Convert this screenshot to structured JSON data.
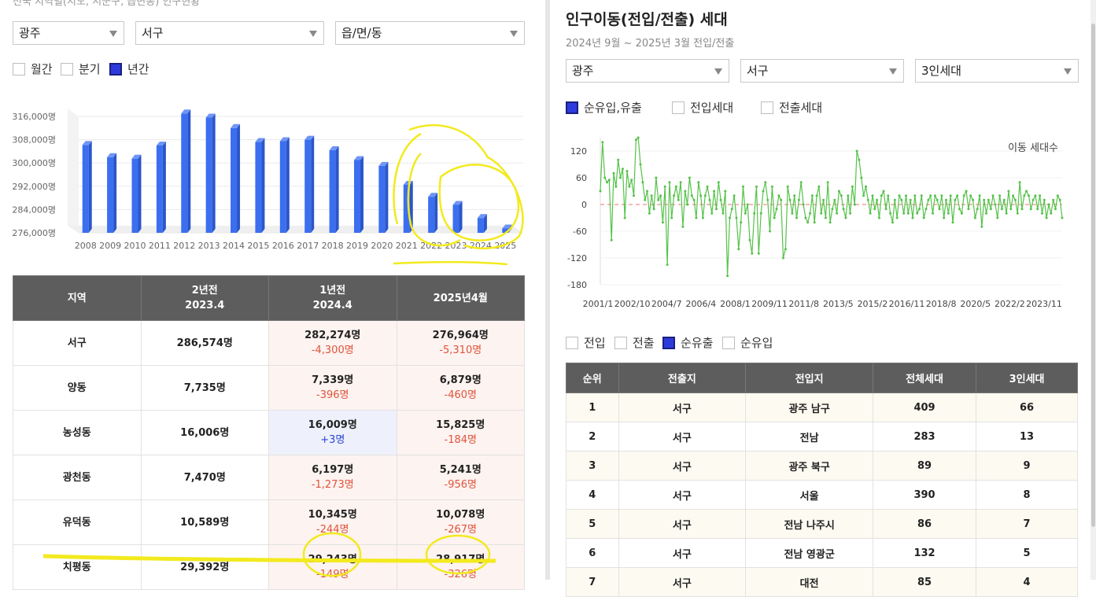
{
  "left": {
    "cut_title": "전국 지역별(시도, 시군구, 읍면동) 인구현황",
    "selects": {
      "sido": "광주",
      "sigungu": "서구",
      "emd": "읍/면/동"
    },
    "period_options": [
      {
        "label": "월간",
        "checked": false
      },
      {
        "label": "분기",
        "checked": false
      },
      {
        "label": "년간",
        "checked": true
      }
    ],
    "table": {
      "headers": [
        {
          "line1": "지역",
          "line2": ""
        },
        {
          "line1": "2년전",
          "line2": "2023.4"
        },
        {
          "line1": "1년전",
          "line2": "2024.4"
        },
        {
          "line1": "2025년4월",
          "line2": ""
        }
      ],
      "rows": [
        {
          "region": "서구",
          "y2": "286,574명",
          "y1": "282,274명",
          "y1_delta": "-4,300명",
          "y1_sign": "neg",
          "cur": "276,964명",
          "cur_delta": "-5,310명",
          "cur_sign": "neg"
        },
        {
          "region": "양동",
          "y2": "7,735명",
          "y1": "7,339명",
          "y1_delta": "-396명",
          "y1_sign": "neg",
          "cur": "6,879명",
          "cur_delta": "-460명",
          "cur_sign": "neg"
        },
        {
          "region": "농성동",
          "y2": "16,006명",
          "y1": "16,009명",
          "y1_delta": "+3명",
          "y1_sign": "pos",
          "cur": "15,825명",
          "cur_delta": "-184명",
          "cur_sign": "neg"
        },
        {
          "region": "광천동",
          "y2": "7,470명",
          "y1": "6,197명",
          "y1_delta": "-1,273명",
          "y1_sign": "neg",
          "cur": "5,241명",
          "cur_delta": "-956명",
          "cur_sign": "neg"
        },
        {
          "region": "유덕동",
          "y2": "10,589명",
          "y1": "10,345명",
          "y1_delta": "-244명",
          "y1_sign": "neg",
          "cur": "10,078명",
          "cur_delta": "-267명",
          "cur_sign": "neg"
        },
        {
          "region": "치평동",
          "y2": "29,392명",
          "y1": "29,243명",
          "y1_delta": "-149명",
          "y1_sign": "neg",
          "cur": "28,917명",
          "cur_delta": "-326명",
          "cur_sign": "neg"
        }
      ]
    }
  },
  "right": {
    "title": "인구이동(전입/전출) 세대",
    "subtitle": "2024년 9월 ~ 2025년 3월 전입/전출",
    "selects": {
      "sido": "광주",
      "sigungu": "서구",
      "household": "3인세대"
    },
    "chart_options": [
      {
        "label": "순유입,유출",
        "checked": true
      },
      {
        "label": "전입세대",
        "checked": false
      },
      {
        "label": "전출세대",
        "checked": false
      }
    ],
    "table_options": [
      {
        "label": "전입",
        "checked": false
      },
      {
        "label": "전출",
        "checked": false
      },
      {
        "label": "순유출",
        "checked": true
      },
      {
        "label": "순유입",
        "checked": false
      }
    ],
    "table": {
      "headers": [
        "순위",
        "전출지",
        "전입지",
        "전체세대",
        "3인세대"
      ],
      "rows": [
        [
          "1",
          "서구",
          "광주 남구",
          "409",
          "66"
        ],
        [
          "2",
          "서구",
          "전남",
          "283",
          "13"
        ],
        [
          "3",
          "서구",
          "광주 북구",
          "89",
          "9"
        ],
        [
          "4",
          "서구",
          "서울",
          "390",
          "8"
        ],
        [
          "5",
          "서구",
          "전남 나주시",
          "86",
          "7"
        ],
        [
          "6",
          "서구",
          "전남 영광군",
          "132",
          "5"
        ],
        [
          "7",
          "서구",
          "대전",
          "85",
          "4"
        ]
      ]
    }
  },
  "chart_data": [
    {
      "type": "bar",
      "categories": [
        "2008",
        "2009",
        "2010",
        "2011",
        "2012",
        "2013",
        "2014",
        "2015",
        "2016",
        "2017",
        "2018",
        "2019",
        "2020",
        "2021",
        "2022",
        "2023",
        "2024",
        "2025"
      ],
      "values": [
        306200,
        302000,
        301500,
        306000,
        317000,
        315600,
        312000,
        307200,
        307500,
        308000,
        304400,
        301000,
        299000,
        292500,
        288400,
        285600,
        281100,
        277500
      ],
      "yticks": [
        "316,000명",
        "308,000명",
        "300,000명",
        "292,000명",
        "284,000명",
        "276,000명"
      ],
      "ylim": [
        276000,
        316000
      ],
      "color": "#3b6ff0",
      "grid": true
    },
    {
      "type": "line",
      "ylabel": "이동 세대수",
      "x_ticks": [
        "2001/1",
        "2002/10",
        "2004/7",
        "2006/4",
        "2008/1",
        "2009/11",
        "2011/8",
        "2013/5",
        "2015/2",
        "2016/11",
        "2018/8",
        "2020/5",
        "2022/2",
        "2023/11"
      ],
      "y_ticks": [
        120,
        60,
        0,
        -60,
        -120,
        -180
      ],
      "ylim": [
        -180,
        150
      ],
      "color": "#55c24a",
      "zero_line_color": "#f2a0a0",
      "series": [
        {
          "values": [
            30,
            140,
            60,
            50,
            55,
            -80,
            70,
            40,
            100,
            60,
            80,
            -30,
            75,
            40,
            55,
            20,
            145,
            150,
            90,
            50,
            10,
            30,
            -20,
            20,
            -10,
            60,
            10,
            20,
            -40,
            40,
            -135,
            50,
            -30,
            20,
            40,
            10,
            50,
            -50,
            30,
            0,
            60,
            20,
            10,
            -30,
            50,
            20,
            -30,
            20,
            40,
            10,
            -20,
            30,
            -10,
            50,
            10,
            -20,
            30,
            -160,
            -30,
            -10,
            20,
            -30,
            -100,
            -40,
            40,
            -20,
            0,
            -80,
            -110,
            -20,
            40,
            -110,
            -20,
            30,
            50,
            10,
            -60,
            40,
            -30,
            -10,
            20,
            10,
            -120,
            -100,
            40,
            10,
            -20,
            20,
            -30,
            10,
            50,
            0,
            -30,
            -40,
            -20,
            20,
            -40,
            20,
            40,
            -20,
            10,
            -30,
            50,
            -40,
            -10,
            10,
            -20,
            30,
            20,
            -10,
            -30,
            20,
            -20,
            40,
            0,
            120,
            100,
            60,
            20,
            40,
            10,
            -20,
            20,
            -10,
            10,
            -30,
            20,
            30,
            -10,
            20,
            -20,
            -40,
            10,
            -30,
            20,
            10,
            -20,
            20,
            -20,
            10,
            -30,
            20,
            -20,
            -10,
            20,
            -30,
            -10,
            10,
            20,
            -20,
            20,
            10,
            -10,
            20,
            -30,
            10,
            -20,
            20,
            -40,
            10,
            20,
            -10,
            -20,
            20,
            30,
            -10,
            20,
            10,
            -30,
            -10,
            20,
            -50,
            10,
            -20,
            10,
            -10,
            20,
            0,
            -30,
            20,
            -10,
            10,
            -20,
            30,
            -10,
            20,
            10,
            -20,
            50,
            -10,
            20,
            30,
            20,
            -10,
            10,
            20,
            -10,
            20,
            -20,
            10,
            -30,
            0,
            -20,
            10,
            -10,
            20,
            10,
            -30
          ]
        }
      ]
    }
  ]
}
